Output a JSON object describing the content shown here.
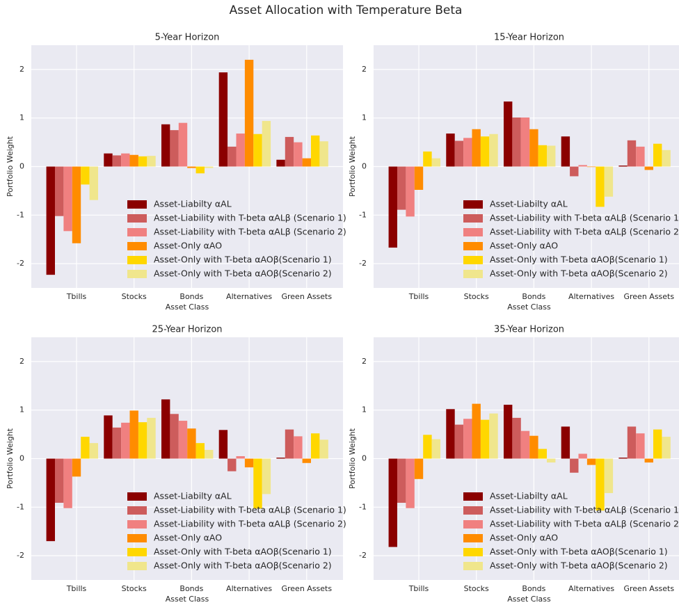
{
  "title": "Asset Allocation with Temperature Beta",
  "chart_data": [
    {
      "type": "bar",
      "title": "5-Year Horizon",
      "xlabel": "Asset Class",
      "ylabel": "Portfolio Weight",
      "categories": [
        "Tbills",
        "Stocks",
        "Bonds",
        "Alternatives",
        "Green Assets"
      ],
      "series": [
        {
          "name": "Asset-Liabilty αAL",
          "color": "#8b0000",
          "values": [
            -2.23,
            0.27,
            0.87,
            1.94,
            0.14
          ]
        },
        {
          "name": "Asset-Liability with T-beta αALβ (Scenario 1)",
          "color": "#cd5c5c",
          "values": [
            -1.02,
            0.23,
            0.75,
            0.41,
            0.61
          ]
        },
        {
          "name": "Asset-Liability with T-beta αALβ (Scenario 2)",
          "color": "#f08080",
          "values": [
            -1.33,
            0.27,
            0.9,
            0.68,
            0.5
          ]
        },
        {
          "name": "Asset-Only αAO",
          "color": "#ff8c00",
          "values": [
            -1.58,
            0.24,
            -0.03,
            2.2,
            0.17
          ]
        },
        {
          "name": "Asset-Only with T-beta αAOβ(Scenario 1)",
          "color": "#ffd700",
          "values": [
            -0.37,
            0.21,
            -0.14,
            0.67,
            0.64
          ]
        },
        {
          "name": "Asset-Only with T-beta αAOβ(Scenario 2)",
          "color": "#f0e68c",
          "values": [
            -0.69,
            0.22,
            -0.03,
            0.94,
            0.52
          ]
        }
      ],
      "ylim": [
        -2.5,
        2.5
      ],
      "yticks": [
        -2,
        -1,
        0,
        1,
        2
      ],
      "grid": true,
      "legend": "lower right"
    },
    {
      "type": "bar",
      "title": "15-Year Horizon",
      "xlabel": "Asset Class",
      "ylabel": "Portfolio Weight",
      "categories": [
        "Tbills",
        "Stocks",
        "Bonds",
        "Alternatives",
        "Green Assets"
      ],
      "series": [
        {
          "name": "Asset-Liabilty αAL",
          "color": "#8b0000",
          "values": [
            -1.67,
            0.68,
            1.34,
            0.62,
            0.02
          ]
        },
        {
          "name": "Asset-Liability with T-beta αALβ (Scenario 1)",
          "color": "#cd5c5c",
          "values": [
            -0.89,
            0.53,
            1.01,
            -0.2,
            0.54
          ]
        },
        {
          "name": "Asset-Liability with T-beta αALβ (Scenario 2)",
          "color": "#f08080",
          "values": [
            -1.03,
            0.59,
            1.01,
            0.03,
            0.41
          ]
        },
        {
          "name": "Asset-Only αAO",
          "color": "#ff8c00",
          "values": [
            -0.48,
            0.77,
            0.77,
            -0.01,
            -0.07
          ]
        },
        {
          "name": "Asset-Only with T-beta αAOβ(Scenario 1)",
          "color": "#ffd700",
          "values": [
            0.31,
            0.62,
            0.44,
            -0.83,
            0.47
          ]
        },
        {
          "name": "Asset-Only with T-beta αAOβ(Scenario 2)",
          "color": "#f0e68c",
          "values": [
            0.17,
            0.67,
            0.43,
            -0.62,
            0.34
          ]
        }
      ],
      "ylim": [
        -2.5,
        2.5
      ],
      "yticks": [
        -2,
        -1,
        0,
        1,
        2
      ],
      "grid": true,
      "legend": "lower right"
    },
    {
      "type": "bar",
      "title": "25-Year Horizon",
      "xlabel": "Asset Class",
      "ylabel": "Portfolio Weight",
      "categories": [
        "Tbills",
        "Stocks",
        "Bonds",
        "Alternatives",
        "Green Assets"
      ],
      "series": [
        {
          "name": "Asset-Liabilty αAL",
          "color": "#8b0000",
          "values": [
            -1.7,
            0.89,
            1.22,
            0.59,
            0.02
          ]
        },
        {
          "name": "Asset-Liability with T-beta αALβ (Scenario 1)",
          "color": "#cd5c5c",
          "values": [
            -0.91,
            0.64,
            0.92,
            -0.26,
            0.6
          ]
        },
        {
          "name": "Asset-Liability with T-beta αALβ (Scenario 2)",
          "color": "#f08080",
          "values": [
            -1.02,
            0.74,
            0.78,
            0.05,
            0.46
          ]
        },
        {
          "name": "Asset-Only αAO",
          "color": "#ff8c00",
          "values": [
            -0.37,
            0.99,
            0.62,
            -0.18,
            -0.09
          ]
        },
        {
          "name": "Asset-Only with T-beta αAOβ(Scenario 1)",
          "color": "#ffd700",
          "values": [
            0.45,
            0.75,
            0.32,
            -1.03,
            0.52
          ]
        },
        {
          "name": "Asset-Only with T-beta αAOβ(Scenario 2)",
          "color": "#f0e68c",
          "values": [
            0.32,
            0.84,
            0.18,
            -0.73,
            0.39
          ]
        }
      ],
      "ylim": [
        -2.5,
        2.5
      ],
      "yticks": [
        -2,
        -1,
        0,
        1,
        2
      ],
      "grid": true,
      "legend": "lower right"
    },
    {
      "type": "bar",
      "title": "35-Year Horizon",
      "xlabel": "Asset Class",
      "ylabel": "Portfolio Weight",
      "categories": [
        "Tbills",
        "Stocks",
        "Bonds",
        "Alternatives",
        "Green Assets"
      ],
      "series": [
        {
          "name": "Asset-Liabilty αAL",
          "color": "#8b0000",
          "values": [
            -1.82,
            1.02,
            1.11,
            0.66,
            0.02
          ]
        },
        {
          "name": "Asset-Liability with T-beta αALβ (Scenario 1)",
          "color": "#cd5c5c",
          "values": [
            -0.91,
            0.7,
            0.84,
            -0.29,
            0.66
          ]
        },
        {
          "name": "Asset-Liability with T-beta αALβ (Scenario 2)",
          "color": "#f08080",
          "values": [
            -1.02,
            0.82,
            0.57,
            0.1,
            0.52
          ]
        },
        {
          "name": "Asset-Only αAO",
          "color": "#ff8c00",
          "values": [
            -0.42,
            1.13,
            0.47,
            -0.13,
            -0.08
          ]
        },
        {
          "name": "Asset-Only with T-beta αAOβ(Scenario 1)",
          "color": "#ffd700",
          "values": [
            0.49,
            0.8,
            0.2,
            -1.07,
            0.6
          ]
        },
        {
          "name": "Asset-Only with T-beta αAOβ(Scenario 2)",
          "color": "#f0e68c",
          "values": [
            0.4,
            0.93,
            -0.08,
            -0.71,
            0.45
          ]
        }
      ],
      "ylim": [
        -2.5,
        2.5
      ],
      "yticks": [
        -2,
        -1,
        0,
        1,
        2
      ],
      "grid": true,
      "legend": "lower right"
    }
  ]
}
